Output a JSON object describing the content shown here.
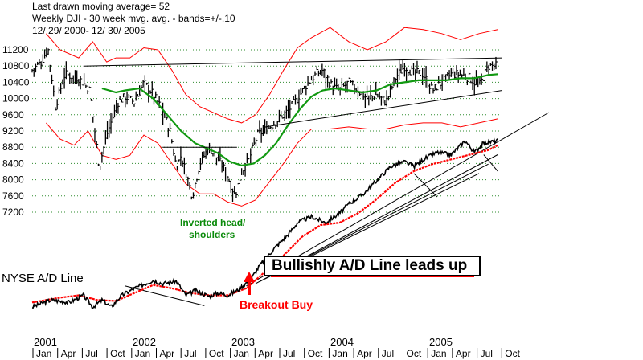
{
  "header": {
    "line1": "Last drawn moving average= 52",
    "line2": "Weekly DJI - 30 week mvg. avg. - bands=+/-.10",
    "line3": "12/ 29/ 2000- 12/ 30/ 2005"
  },
  "annotations": {
    "inverted_head_1": "Inverted head/",
    "inverted_head_2": "shoulders",
    "ad_line_label": "NYSE A/D Line",
    "callout": "Bullishly A/D Line leads up",
    "breakout": "Breakout Buy"
  },
  "colors": {
    "price_bars": "#000000",
    "ma30": "#119911",
    "bands": "#ff0000",
    "ad_line": "#000000",
    "ad_ma": "#ff0000",
    "gridline": "#2e8b2e"
  },
  "chart_data": [
    {
      "type": "bar",
      "subtype": "weekly price bars with 30-week moving average and +/-10% bands",
      "title": "Weekly DJI - 30 week mvg. avg. - bands=+/-.10",
      "ylim": [
        7200,
        11200
      ],
      "yticks": [
        7200,
        7600,
        8000,
        8400,
        8800,
        9200,
        9600,
        10000,
        10400,
        10800,
        11200
      ],
      "grid": true,
      "x_years": [
        "2001",
        "2002",
        "2003",
        "2004",
        "2005"
      ],
      "x_months": [
        "Jan",
        "Apr",
        "Jul",
        "Oct",
        "Jan",
        "Apr",
        "Jul",
        "Oct",
        "Jan",
        "Apr",
        "Jul",
        "Oct",
        "Jan",
        "Apr",
        "Jul",
        "Oct",
        "Jan",
        "Apr",
        "Jul",
        "Oct"
      ],
      "price_path": [
        [
          2001.0,
          10700
        ],
        [
          2001.1,
          10900
        ],
        [
          2001.17,
          11250
        ],
        [
          2001.25,
          9800
        ],
        [
          2001.35,
          10600
        ],
        [
          2001.5,
          10500
        ],
        [
          2001.62,
          10200
        ],
        [
          2001.72,
          8300
        ],
        [
          2001.8,
          9100
        ],
        [
          2001.92,
          9900
        ],
        [
          2002.0,
          10050
        ],
        [
          2002.1,
          9900
        ],
        [
          2002.2,
          10400
        ],
        [
          2002.3,
          10100
        ],
        [
          2002.4,
          9700
        ],
        [
          2002.48,
          9200
        ],
        [
          2002.55,
          8300
        ],
        [
          2002.6,
          8600
        ],
        [
          2002.72,
          7600
        ],
        [
          2002.8,
          8400
        ],
        [
          2002.9,
          8800
        ],
        [
          2003.0,
          8500
        ],
        [
          2003.08,
          8200
        ],
        [
          2003.18,
          7600
        ],
        [
          2003.25,
          8200
        ],
        [
          2003.33,
          8500
        ],
        [
          2003.42,
          9100
        ],
        [
          2003.55,
          9300
        ],
        [
          2003.65,
          9500
        ],
        [
          2003.75,
          9700
        ],
        [
          2003.85,
          10000
        ],
        [
          2003.95,
          10350
        ],
        [
          2004.05,
          10600
        ],
        [
          2004.12,
          10700
        ],
        [
          2004.22,
          10300
        ],
        [
          2004.3,
          10200
        ],
        [
          2004.4,
          10400
        ],
        [
          2004.5,
          10200
        ],
        [
          2004.6,
          10000
        ],
        [
          2004.7,
          10100
        ],
        [
          2004.8,
          9900
        ],
        [
          2004.9,
          10500
        ],
        [
          2005.0,
          10800
        ],
        [
          2005.08,
          10650
        ],
        [
          2005.2,
          10600
        ],
        [
          2005.3,
          10200
        ],
        [
          2005.4,
          10400
        ],
        [
          2005.5,
          10600
        ],
        [
          2005.6,
          10600
        ],
        [
          2005.7,
          10500
        ],
        [
          2005.8,
          10300
        ],
        [
          2005.9,
          10800
        ],
        [
          2006.0,
          10800
        ]
      ],
      "ma30_path": [
        [
          2001.75,
          10250
        ],
        [
          2001.9,
          10150
        ],
        [
          2002.0,
          10200
        ],
        [
          2002.15,
          10250
        ],
        [
          2002.3,
          10000
        ],
        [
          2002.45,
          9600
        ],
        [
          2002.6,
          9200
        ],
        [
          2002.75,
          8900
        ],
        [
          2002.9,
          8750
        ],
        [
          2003.0,
          8650
        ],
        [
          2003.12,
          8450
        ],
        [
          2003.25,
          8350
        ],
        [
          2003.38,
          8400
        ],
        [
          2003.5,
          8600
        ],
        [
          2003.62,
          8900
        ],
        [
          2003.75,
          9350
        ],
        [
          2003.88,
          9750
        ],
        [
          2004.0,
          10050
        ],
        [
          2004.12,
          10200
        ],
        [
          2004.25,
          10250
        ],
        [
          2004.4,
          10200
        ],
        [
          2004.55,
          10150
        ],
        [
          2004.7,
          10200
        ],
        [
          2004.85,
          10350
        ],
        [
          2005.0,
          10400
        ],
        [
          2005.15,
          10450
        ],
        [
          2005.3,
          10450
        ],
        [
          2005.45,
          10450
        ],
        [
          2005.6,
          10500
        ],
        [
          2005.75,
          10500
        ],
        [
          2005.9,
          10580
        ],
        [
          2006.0,
          10600
        ]
      ],
      "upper_band_path": [
        [
          2001.15,
          11600
        ],
        [
          2001.3,
          11200
        ],
        [
          2001.5,
          11000
        ],
        [
          2001.65,
          11400
        ],
        [
          2001.8,
          10900
        ],
        [
          2001.9,
          11000
        ],
        [
          2002.05,
          11000
        ],
        [
          2002.2,
          11250
        ],
        [
          2002.35,
          11200
        ],
        [
          2002.5,
          10700
        ],
        [
          2002.65,
          10100
        ],
        [
          2002.8,
          9800
        ],
        [
          2002.95,
          9650
        ],
        [
          2003.1,
          9500
        ],
        [
          2003.25,
          9400
        ],
        [
          2003.4,
          9600
        ],
        [
          2003.55,
          10100
        ],
        [
          2003.7,
          10700
        ],
        [
          2003.85,
          11250
        ],
        [
          2004.0,
          11500
        ],
        [
          2004.2,
          11750
        ],
        [
          2004.4,
          11400
        ],
        [
          2004.6,
          11200
        ],
        [
          2004.8,
          11400
        ],
        [
          2005.0,
          11750
        ],
        [
          2005.2,
          11700
        ],
        [
          2005.4,
          11600
        ],
        [
          2005.6,
          11450
        ],
        [
          2005.8,
          11600
        ],
        [
          2006.0,
          11700
        ]
      ],
      "lower_band_path": [
        [
          2001.15,
          9400
        ],
        [
          2001.3,
          9000
        ],
        [
          2001.45,
          8850
        ],
        [
          2001.6,
          9200
        ],
        [
          2001.75,
          8600
        ],
        [
          2001.9,
          8500
        ],
        [
          2002.05,
          8600
        ],
        [
          2002.2,
          9100
        ],
        [
          2002.35,
          8900
        ],
        [
          2002.5,
          8400
        ],
        [
          2002.65,
          7900
        ],
        [
          2002.8,
          7650
        ],
        [
          2002.95,
          7650
        ],
        [
          2003.1,
          7450
        ],
        [
          2003.25,
          7350
        ],
        [
          2003.4,
          7500
        ],
        [
          2003.55,
          7950
        ],
        [
          2003.7,
          8400
        ],
        [
          2003.85,
          8900
        ],
        [
          2004.0,
          9250
        ],
        [
          2004.2,
          9250
        ],
        [
          2004.4,
          9300
        ],
        [
          2004.6,
          9250
        ],
        [
          2004.8,
          9250
        ],
        [
          2005.0,
          9350
        ],
        [
          2005.2,
          9400
        ],
        [
          2005.4,
          9400
        ],
        [
          2005.6,
          9300
        ],
        [
          2005.8,
          9400
        ],
        [
          2006.0,
          9500
        ]
      ],
      "trendlines": [
        [
          [
            2001.55,
            10800
          ],
          [
            2006.05,
            11000
          ]
        ],
        [
          [
            2003.5,
            9300
          ],
          [
            2006.05,
            10200
          ]
        ],
        [
          [
            2002.4,
            8800
          ],
          [
            2003.2,
            8800
          ]
        ]
      ]
    },
    {
      "type": "line",
      "name": "NYSE A/D Line",
      "series": [
        {
          "name": "NYSE A/D Line",
          "values": [
            [
              2001.0,
              0.05
            ],
            [
              2001.2,
              0.2
            ],
            [
              2001.4,
              0.15
            ],
            [
              2001.55,
              0.3
            ],
            [
              2001.65,
              0.05
            ],
            [
              2001.75,
              0.2
            ],
            [
              2001.85,
              0.05
            ],
            [
              2001.95,
              0.28
            ],
            [
              2002.1,
              0.45
            ],
            [
              2002.3,
              0.62
            ],
            [
              2002.4,
              0.55
            ],
            [
              2002.55,
              0.6
            ],
            [
              2002.65,
              0.3
            ],
            [
              2002.75,
              0.4
            ],
            [
              2002.9,
              0.28
            ],
            [
              2003.0,
              0.35
            ],
            [
              2003.1,
              0.3
            ],
            [
              2003.2,
              0.4
            ],
            [
              2003.35,
              0.65
            ],
            [
              2003.45,
              0.95
            ],
            [
              2003.6,
              1.3
            ],
            [
              2003.75,
              1.6
            ],
            [
              2003.85,
              1.85
            ],
            [
              2004.0,
              1.98
            ],
            [
              2004.15,
              1.85
            ],
            [
              2004.3,
              2.05
            ],
            [
              2004.4,
              2.25
            ],
            [
              2004.55,
              2.45
            ],
            [
              2004.7,
              2.75
            ],
            [
              2004.85,
              3.05
            ],
            [
              2005.0,
              3.15
            ],
            [
              2005.1,
              3.05
            ],
            [
              2005.2,
              3.2
            ],
            [
              2005.35,
              3.35
            ],
            [
              2005.5,
              3.3
            ],
            [
              2005.65,
              3.6
            ],
            [
              2005.75,
              3.35
            ],
            [
              2005.85,
              3.55
            ],
            [
              2006.0,
              3.6
            ]
          ]
        },
        {
          "name": "A/D moving average",
          "values": [
            [
              2001.0,
              0.15
            ],
            [
              2001.3,
              0.25
            ],
            [
              2001.5,
              0.3
            ],
            [
              2001.7,
              0.2
            ],
            [
              2001.9,
              0.18
            ],
            [
              2002.1,
              0.35
            ],
            [
              2002.3,
              0.52
            ],
            [
              2002.5,
              0.45
            ],
            [
              2002.7,
              0.35
            ],
            [
              2002.9,
              0.3
            ],
            [
              2003.1,
              0.3
            ],
            [
              2003.3,
              0.45
            ],
            [
              2003.5,
              0.8
            ],
            [
              2003.7,
              1.15
            ],
            [
              2003.9,
              1.55
            ],
            [
              2004.1,
              1.8
            ],
            [
              2004.3,
              1.85
            ],
            [
              2004.5,
              2.05
            ],
            [
              2004.7,
              2.35
            ],
            [
              2004.9,
              2.7
            ],
            [
              2005.1,
              2.95
            ],
            [
              2005.3,
              3.1
            ],
            [
              2005.5,
              3.2
            ],
            [
              2005.7,
              3.3
            ],
            [
              2005.9,
              3.4
            ],
            [
              2006.0,
              3.5
            ]
          ]
        }
      ],
      "trendlines": [
        [
          [
            2002.0,
            0.5
          ],
          [
            2002.85,
            0.08
          ]
        ],
        [
          [
            2003.3,
            0.5
          ],
          [
            2006.55,
            4.2
          ]
        ],
        [
          [
            2003.4,
            0.55
          ],
          [
            2006.0,
            3.3
          ]
        ],
        [
          [
            2003.45,
            0.6
          ],
          [
            2005.9,
            3.1
          ]
        ],
        [
          [
            2003.5,
            0.65
          ],
          [
            2005.8,
            2.9
          ]
        ],
        [
          [
            2005.1,
            2.9
          ],
          [
            2005.35,
            2.4
          ]
        ],
        [
          [
            2005.85,
            3.3
          ],
          [
            2006.0,
            2.95
          ]
        ]
      ]
    }
  ]
}
